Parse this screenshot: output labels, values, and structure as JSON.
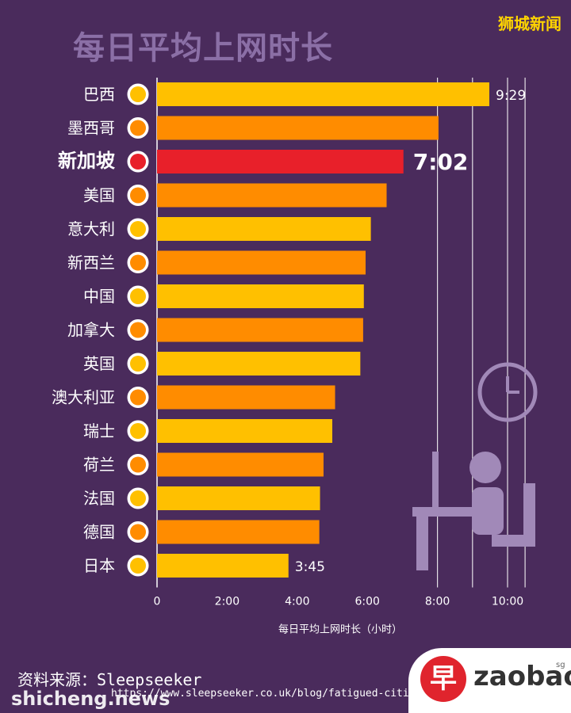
{
  "header": {
    "title": "每日平均上网时长",
    "brand": "狮城新闻"
  },
  "chart_data": {
    "type": "bar",
    "orientation": "horizontal",
    "xlabel": "每日平均上网时长（小时）",
    "xlim": [
      0,
      10.5
    ],
    "xticks": [
      "0",
      "2:00",
      "4:00",
      "6:00",
      "8:00",
      "10:00"
    ],
    "categories": [
      "巴西",
      "墨西哥",
      "新加坡",
      "美国",
      "意大利",
      "新西兰",
      "中国",
      "加拿大",
      "英国",
      "澳大利亚",
      "瑞士",
      "荷兰",
      "法国",
      "德国",
      "日本"
    ],
    "values": [
      9.48,
      8.03,
      7.03,
      6.55,
      6.1,
      5.95,
      5.9,
      5.88,
      5.8,
      5.08,
      5.0,
      4.75,
      4.65,
      4.63,
      3.75
    ],
    "data_labels": {
      "0": "9:29",
      "2": "7:02",
      "14": "3:45"
    },
    "highlight": "新加坡",
    "colors": {
      "odd": "#ffc000",
      "even": "#ff8c00",
      "highlight": "#e8202a",
      "grid": "#ffffff",
      "background": "#4a2b5c"
    },
    "grid": "vertical lines at 8:00, 9:00, 10:00, 10:30"
  },
  "footer": {
    "source": "资料来源：Sleepseeker",
    "url": "https://www.sleepseeker.co.uk/blog/fatigued-cities",
    "watermark": "shicheng.news",
    "logo_char": "早",
    "logo_word": "zaobao",
    "logo_sg": "sg"
  }
}
